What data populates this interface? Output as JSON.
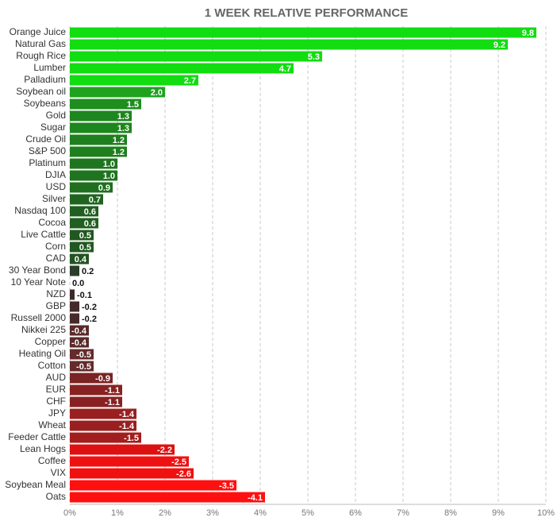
{
  "chart_data": {
    "type": "bar",
    "orientation": "horizontal",
    "title": "1 WEEK RELATIVE PERFORMANCE",
    "categories": [
      "Orange Juice",
      "Natural Gas",
      "Rough Rice",
      "Lumber",
      "Palladium",
      "Soybean oil",
      "Soybeans",
      "Gold",
      "Sugar",
      "Crude Oil",
      "S&P 500",
      "Platinum",
      "DJIA",
      "USD",
      "Silver",
      "Nasdaq 100",
      "Cocoa",
      "Live Cattle",
      "Corn",
      "CAD",
      "30 Year Bond",
      "10 Year Note",
      "NZD",
      "GBP",
      "Russell 2000",
      "Nikkei 225",
      "Copper",
      "Heating Oil",
      "Cotton",
      "AUD",
      "EUR",
      "CHF",
      "JPY",
      "Wheat",
      "Feeder Cattle",
      "Lean Hogs",
      "Coffee",
      "VIX",
      "Soybean Meal",
      "Oats"
    ],
    "values": [
      9.8,
      9.2,
      5.3,
      4.7,
      2.7,
      2.0,
      1.5,
      1.3,
      1.3,
      1.2,
      1.2,
      1.0,
      1.0,
      0.9,
      0.7,
      0.6,
      0.6,
      0.5,
      0.5,
      0.4,
      0.2,
      0.0,
      -0.1,
      -0.2,
      -0.2,
      -0.4,
      -0.4,
      -0.5,
      -0.5,
      -0.9,
      -1.1,
      -1.1,
      -1.4,
      -1.4,
      -1.5,
      -2.2,
      -2.5,
      -2.6,
      -3.5,
      -4.1
    ],
    "value_labels": [
      "9.8",
      "9.2",
      "5.3",
      "4.7",
      "2.7",
      "2.0",
      "1.5",
      "1.3",
      "1.3",
      "1.2",
      "1.2",
      "1.0",
      "1.0",
      "0.9",
      "0.7",
      "0.6",
      "0.6",
      "0.5",
      "0.5",
      "0.4",
      "0.2",
      "0.0",
      "-0.1",
      "-0.2",
      "-0.2",
      "-0.4",
      "-0.4",
      "-0.5",
      "-0.5",
      "-0.9",
      "-1.1",
      "-1.1",
      "-1.4",
      "-1.4",
      "-1.5",
      "-2.2",
      "-2.5",
      "-2.6",
      "-3.5",
      "-4.1"
    ],
    "colors": [
      "#11dd11",
      "#11dd11",
      "#11dd11",
      "#11dd11",
      "#11dd11",
      "#1fa31f",
      "#1e8e1e",
      "#1e861e",
      "#1e861e",
      "#1e7f1e",
      "#1e7f1e",
      "#1f751f",
      "#1f751f",
      "#1f6f1f",
      "#206420",
      "#215e21",
      "#215e21",
      "#215821",
      "#215821",
      "#225222",
      "#2a3d2a",
      "#333333",
      "#3a2a2a",
      "#442a2a",
      "#442a2a",
      "#5a2a2a",
      "#5a2a2a",
      "#652a2a",
      "#652a2a",
      "#7a2424",
      "#882222",
      "#882222",
      "#9a2020",
      "#9a2020",
      "#a21e1e",
      "#dd1111",
      "#ee1111",
      "#f01010",
      "#ff0f0f",
      "#ff1010"
    ],
    "xlim": [
      0,
      10
    ],
    "xticks": [
      {
        "value": 0,
        "label": "0%"
      },
      {
        "value": 1,
        "label": "1%"
      },
      {
        "value": 2,
        "label": "2%"
      },
      {
        "value": 3,
        "label": "3%"
      },
      {
        "value": 4,
        "label": "4%"
      },
      {
        "value": 5,
        "label": "5%"
      },
      {
        "value": 6,
        "label": "6%"
      },
      {
        "value": 7,
        "label": "7%"
      },
      {
        "value": 8,
        "label": "8%"
      },
      {
        "value": 9,
        "label": "9%"
      },
      {
        "value": 10,
        "label": "10%"
      }
    ],
    "grid": true
  }
}
